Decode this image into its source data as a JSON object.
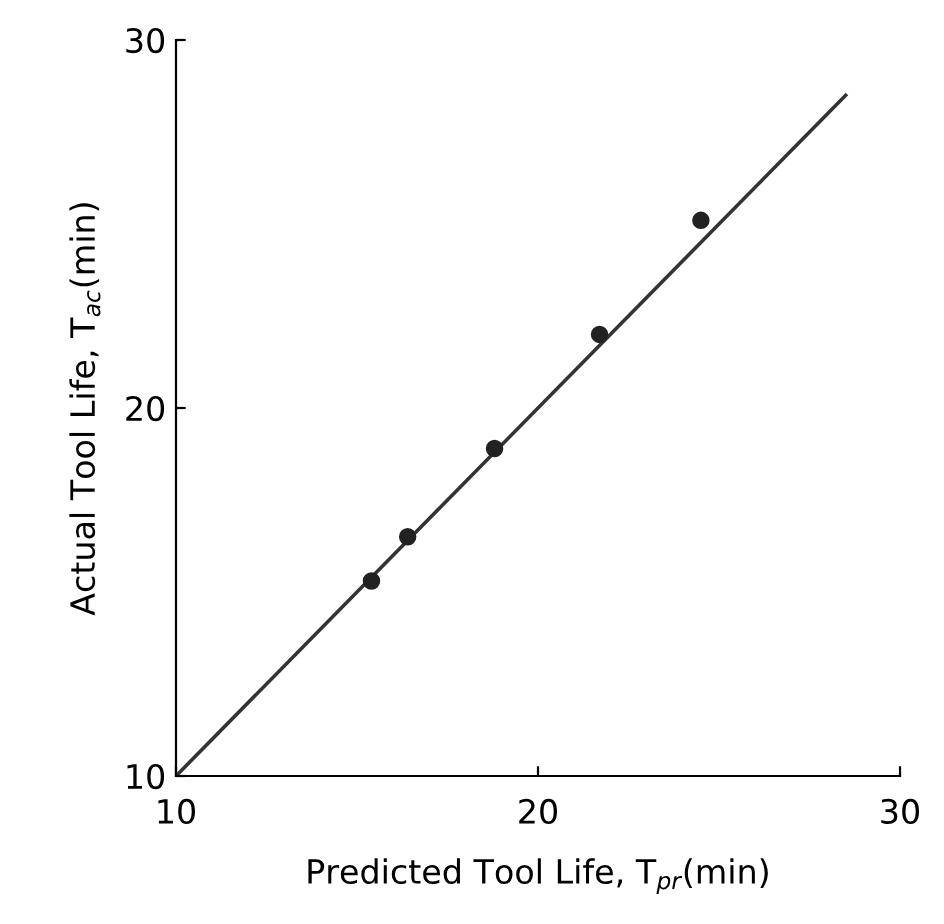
{
  "chart_data": {
    "type": "scatter",
    "xlabel": "Predicted Tool Life, T$_{pr}$(min)",
    "ylabel": "Actual Tool Life, T$_{ac}$(min)",
    "series": [
      {
        "color": "#222222",
        "marker": "circle",
        "x": [
          15.4,
          16.4,
          18.8,
          21.7,
          24.5
        ],
        "values": [
          15.3,
          16.5,
          18.9,
          22.0,
          25.1
        ]
      },
      {
        "type": "line",
        "color": "#333333",
        "marker": "none",
        "line_style": "solid",
        "x": [
          10,
          28.5
        ],
        "values": [
          10,
          28.5
        ]
      }
    ],
    "xlim": [
      10,
      30
    ],
    "ylim": [
      10,
      30
    ],
    "xticks": [
      10,
      20,
      30
    ],
    "yticks": [
      10,
      20,
      30
    ],
    "grid": false,
    "legend": false
  }
}
